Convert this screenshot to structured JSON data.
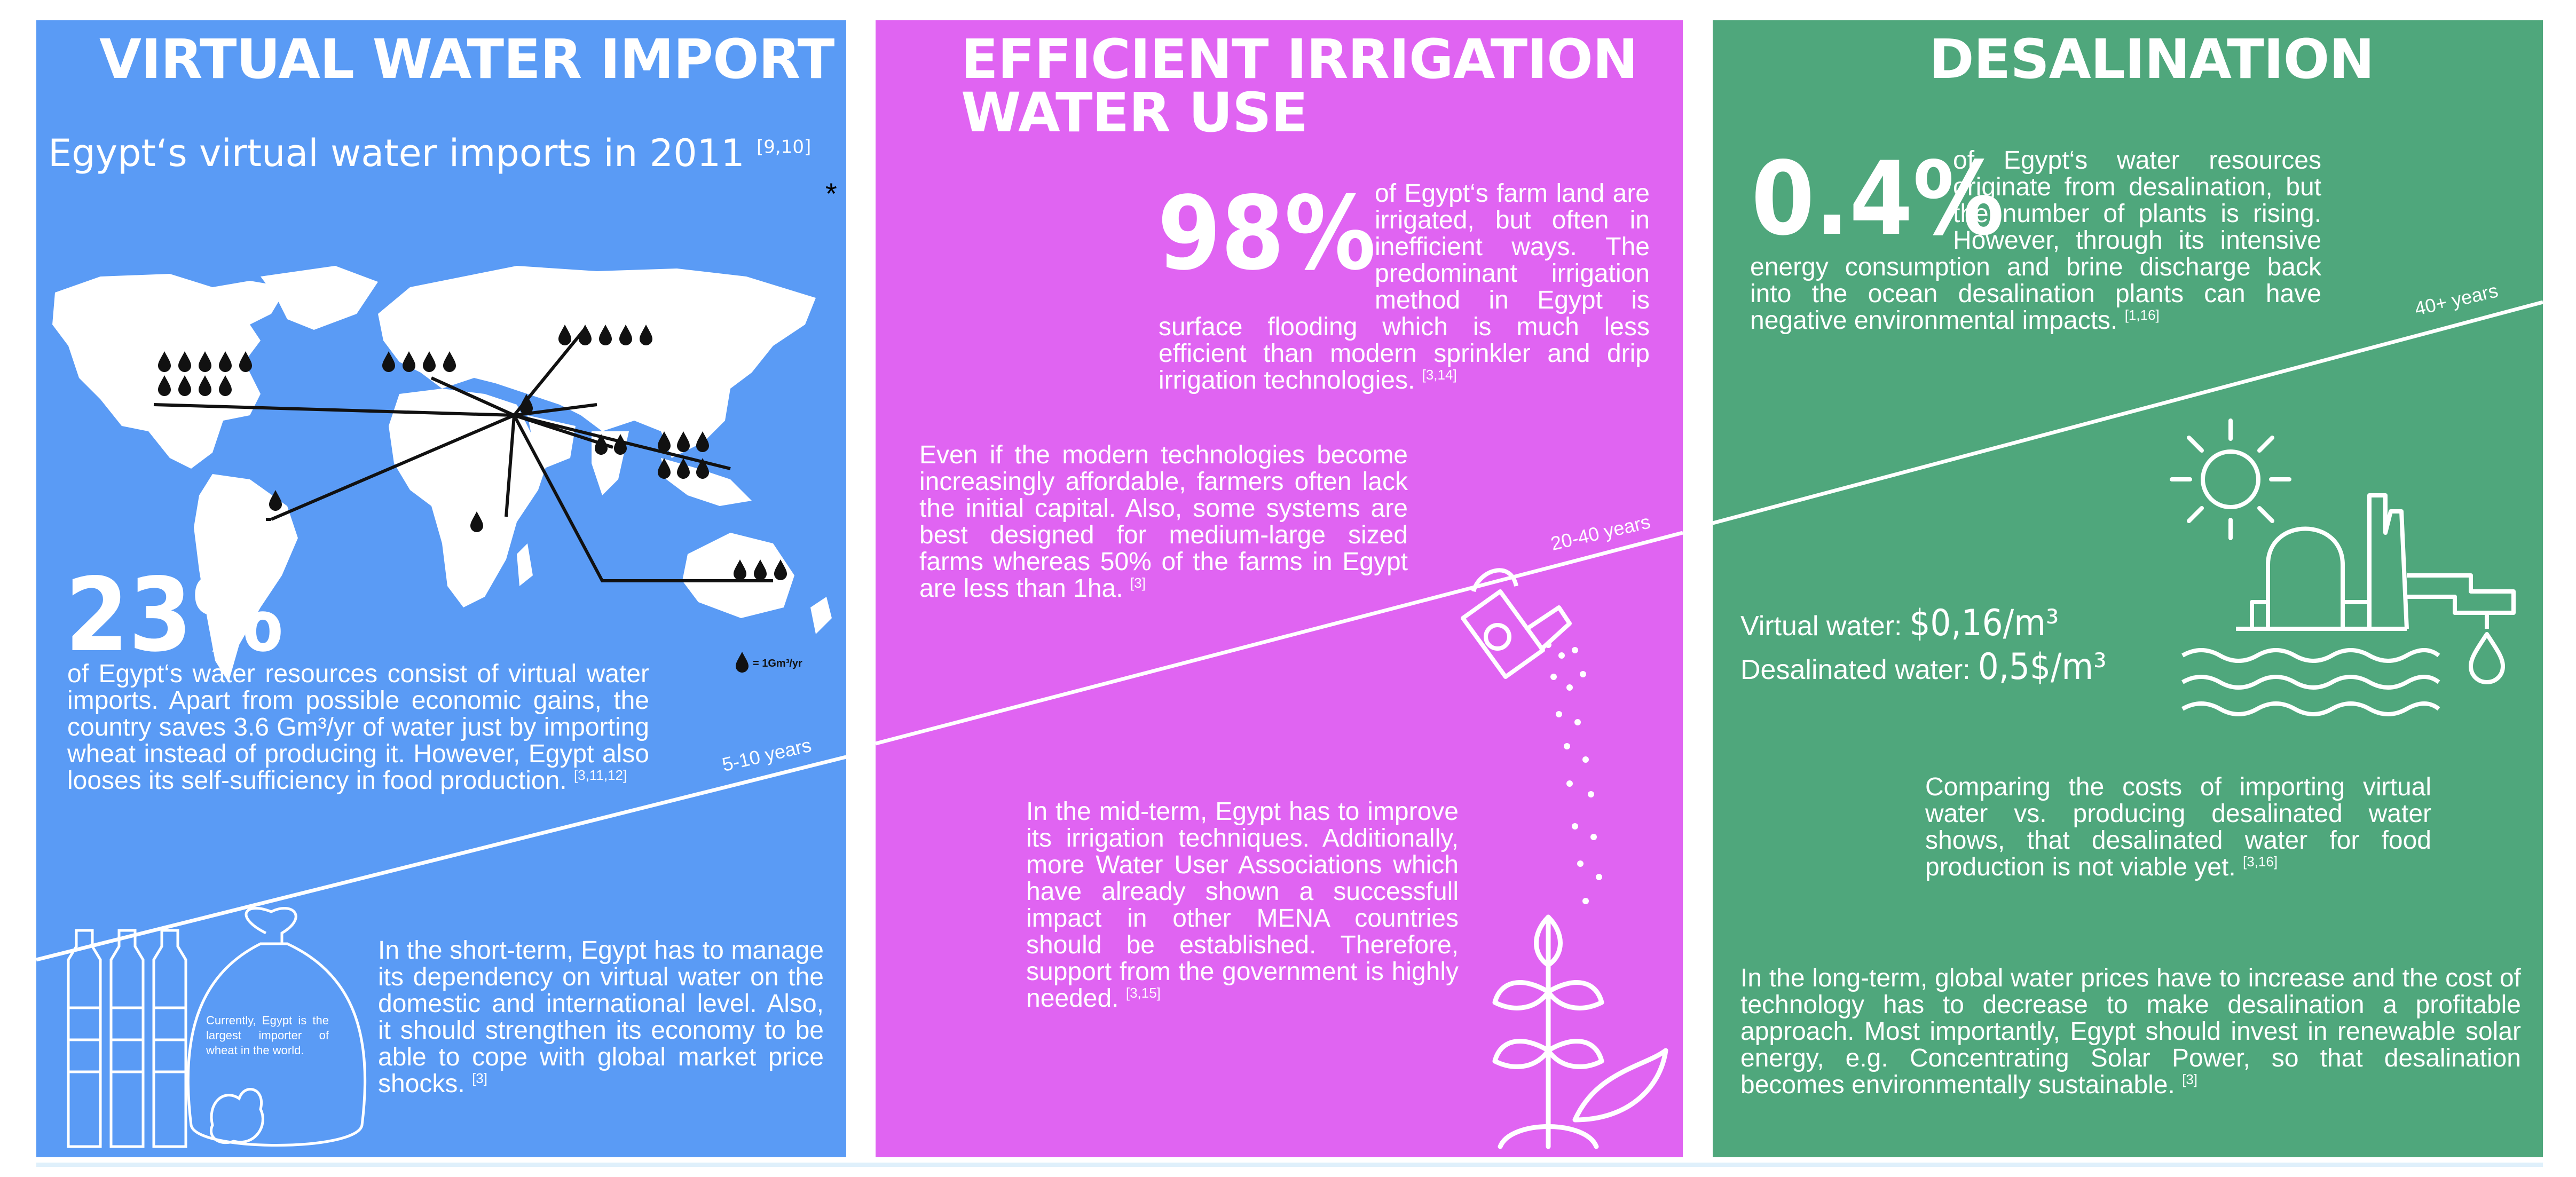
{
  "virtual_water": {
    "title": "VIRTUAL WATER IMPORT",
    "map_title": "Egypt‘s virtual water imports in 2011",
    "map_refs": "[9,10]",
    "asterisk": "*",
    "legend_unit": "= 1Gm³/yr",
    "stat_percent": "23%",
    "stat_text": "of Egypt‘s water resources consist of virtual water imports. Apart from possible economic gains, the country saves 3.6 Gm³/yr of water just by importing wheat instead of producing it. However, Egypt also looses its self-sufficiency in food production.",
    "stat_refs": "[3,11,12]",
    "years": "5-10 years",
    "short_term_text": "In the short-term, Egypt has to manage its dependency on virtual water on the domestic and international level. Also, it should strengthen its economy to be able to cope with global market price shocks.",
    "short_term_refs": "[3]",
    "sack_text": "Currently, Egypt is the largest importer of wheat in the world."
  },
  "irrigation": {
    "title_line1": "EFFICIENT IRRIGATION",
    "title_line2": "WATER USE",
    "stat_percent": "98%",
    "stat_text": "of Egypt‘s farm land are irrigated, but often in inefficient ways. The predominant irrigation method in Egypt is surface flooding which is much less efficient than modern sprinkler and drip irrigation technologies.",
    "stat_refs": "[3,14]",
    "capital_text": "Even if the modern technologies become increasingly affordable, farmers often lack the initial capital. Also, some systems are best designed for medium-large sized farms whereas 50% of the farms in Egypt are less than 1ha.",
    "capital_refs": "[3]",
    "years": "20-40 years",
    "mid_term_text": "In the mid-term, Egypt has to improve its irrigation techniques. Additionally, more Water User Associations which have already shown a successfull impact in other MENA countries should be established. Therefore, support from the government is highly needed.",
    "mid_term_refs": "[3,15]"
  },
  "desalination": {
    "title": "DESALINATION",
    "stat_percent": "0.4%",
    "stat_text": "of Egypt‘s water resources originate from desalination, but the number of plants is rising. However, through its intensive energy consumption and brine discharge back into the ocean desalination plants can have negative environmental impacts.",
    "stat_refs": "[1,16]",
    "years": "40+ years",
    "virtual_label": "Virtual water:",
    "virtual_value": "$0,16/m³",
    "desal_label": "Desalinated water:",
    "desal_value": "0,5$/m³",
    "compare_text": "Comparing the costs of importing virtual water vs. producing desalinated water shows, that desalinated water for food production is not viable yet.",
    "compare_refs": "[3,16]",
    "long_term_text": "In the long-term, global water prices have to increase and the cost of technology has to decrease to make desalination a profitable approach. Most importantly, Egypt should invest in renewable solar energy, e.g. Concentrating Solar Power, so that desalination becomes environmentally sustainable.",
    "long_term_refs": "[3]"
  },
  "colors": {
    "blue_panel": "#5a9bf5",
    "pink_panel": "#e064f2",
    "green_panel": "#4fa77c"
  }
}
